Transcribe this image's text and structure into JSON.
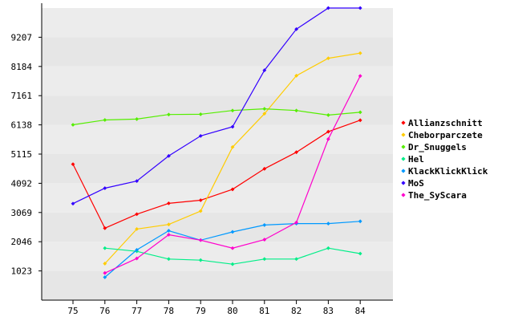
{
  "chart_data": {
    "type": "line",
    "title": "",
    "xlabel": "",
    "ylabel": "",
    "categories": [
      "75",
      "76",
      "77",
      "78",
      "79",
      "80",
      "81",
      "82",
      "83",
      "84"
    ],
    "y_ticks": [
      1023,
      2046,
      3069,
      4092,
      5115,
      6138,
      7161,
      8184,
      9207
    ],
    "ylim": [
      0,
      10230
    ],
    "grid": "horizontal bands",
    "legend_position": "right",
    "series": [
      {
        "name": "Allianzschnitt",
        "color": "#ff0000",
        "values": [
          4760,
          2520,
          3010,
          3390,
          3500,
          3880,
          4600,
          5180,
          5900,
          6300
        ]
      },
      {
        "name": "Cheborparczete",
        "color": "#ffcc00",
        "values": [
          null,
          1280,
          2490,
          2650,
          3120,
          5360,
          6530,
          7860,
          8470,
          8650
        ]
      },
      {
        "name": "Dr_Snuggels",
        "color": "#55ee00",
        "values": [
          6140,
          6310,
          6340,
          6500,
          6510,
          6640,
          6700,
          6640,
          6480,
          6580
        ]
      },
      {
        "name": "Hel",
        "color": "#00ee88",
        "values": [
          null,
          1820,
          1710,
          1440,
          1400,
          1260,
          1440,
          1440,
          1820,
          1630
        ]
      },
      {
        "name": "KlackKlickKlick",
        "color": "#0099ff",
        "values": [
          null,
          800,
          1760,
          2430,
          2100,
          2390,
          2630,
          2680,
          2680,
          2760
        ]
      },
      {
        "name": "MoS",
        "color": "#3300ff",
        "values": [
          3380,
          3920,
          4170,
          5050,
          5750,
          6070,
          8050,
          9490,
          10230,
          10230
        ]
      },
      {
        "name": "The_SyScara",
        "color": "#ff00cc",
        "values": [
          null,
          950,
          1460,
          2290,
          2100,
          1820,
          2120,
          2720,
          5640,
          7850
        ]
      }
    ]
  }
}
